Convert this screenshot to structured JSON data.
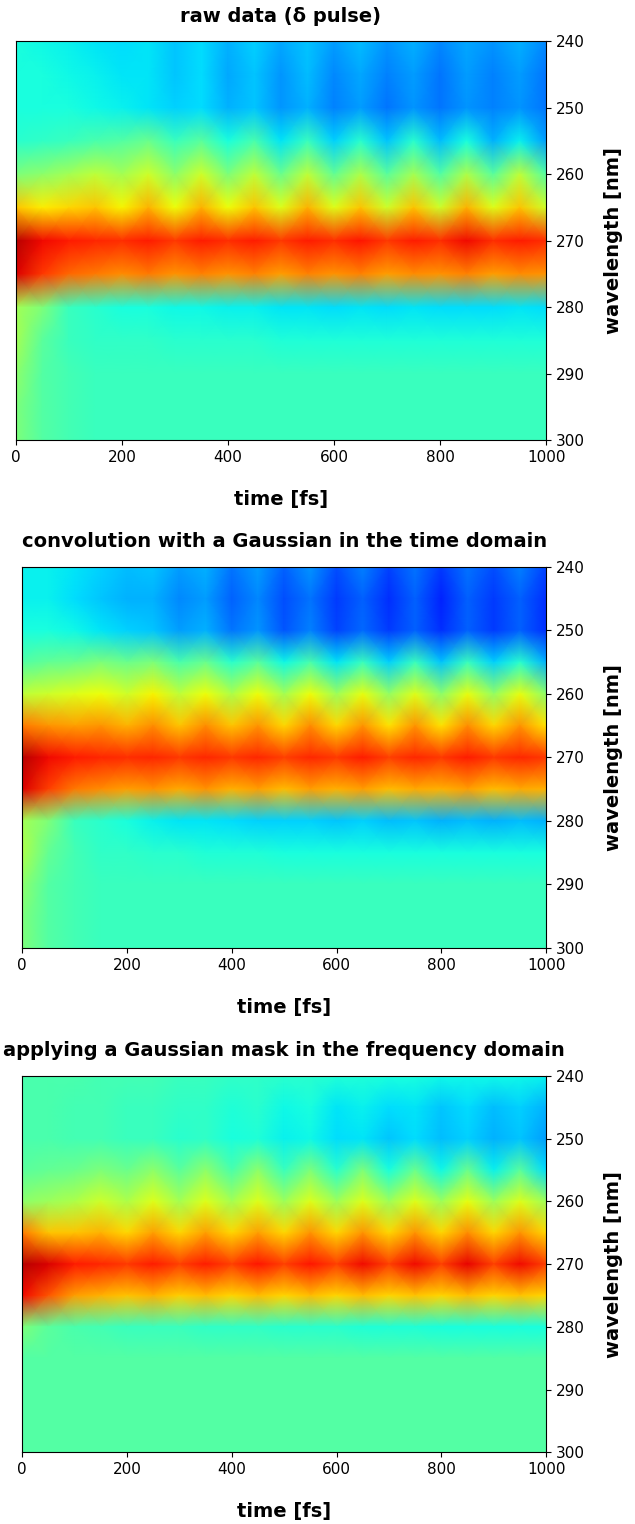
{
  "chart_data": [
    {
      "type": "heatmap",
      "title": "raw data (δ pulse)",
      "x_label": "time [fs]",
      "y_label": "wavelength [nm]",
      "xlim": [
        0,
        1000
      ],
      "ylim": [
        300,
        240
      ],
      "xticks": [
        0,
        200,
        400,
        600,
        800,
        1000
      ],
      "yticks": [
        240,
        250,
        260,
        270,
        280,
        290,
        300
      ],
      "color_range": [
        0,
        1
      ],
      "x": [
        0,
        50,
        100,
        150,
        200,
        250,
        300,
        350,
        400,
        450,
        500,
        550,
        600,
        650,
        700,
        750,
        800,
        850,
        900,
        950,
        1000
      ],
      "y": [
        240,
        245,
        250,
        255,
        260,
        265,
        270,
        275,
        280,
        285,
        290,
        295,
        300
      ],
      "cells": [
        [
          0.38,
          0.37,
          0.36,
          0.35,
          0.34,
          0.35,
          0.32,
          0.34,
          0.3,
          0.33,
          0.29,
          0.32,
          0.28,
          0.31,
          0.27,
          0.3,
          0.26,
          0.29,
          0.27,
          0.3,
          0.26
        ],
        [
          0.38,
          0.38,
          0.37,
          0.36,
          0.35,
          0.35,
          0.32,
          0.34,
          0.29,
          0.32,
          0.27,
          0.31,
          0.26,
          0.29,
          0.25,
          0.28,
          0.24,
          0.28,
          0.25,
          0.28,
          0.24
        ],
        [
          0.38,
          0.38,
          0.38,
          0.37,
          0.36,
          0.35,
          0.33,
          0.34,
          0.3,
          0.32,
          0.27,
          0.3,
          0.25,
          0.28,
          0.24,
          0.27,
          0.24,
          0.27,
          0.25,
          0.27,
          0.24
        ],
        [
          0.4,
          0.41,
          0.42,
          0.44,
          0.45,
          0.48,
          0.42,
          0.46,
          0.38,
          0.44,
          0.35,
          0.42,
          0.33,
          0.4,
          0.32,
          0.4,
          0.31,
          0.38,
          0.3,
          0.36,
          0.28
        ],
        [
          0.5,
          0.52,
          0.55,
          0.58,
          0.55,
          0.6,
          0.52,
          0.6,
          0.5,
          0.58,
          0.48,
          0.58,
          0.47,
          0.56,
          0.46,
          0.55,
          0.45,
          0.56,
          0.46,
          0.58,
          0.45
        ],
        [
          0.7,
          0.66,
          0.68,
          0.7,
          0.65,
          0.72,
          0.64,
          0.72,
          0.64,
          0.7,
          0.62,
          0.72,
          0.62,
          0.7,
          0.6,
          0.7,
          0.6,
          0.72,
          0.62,
          0.7,
          0.6
        ],
        [
          0.95,
          0.9,
          0.88,
          0.87,
          0.86,
          0.88,
          0.85,
          0.88,
          0.86,
          0.88,
          0.85,
          0.88,
          0.86,
          0.89,
          0.85,
          0.88,
          0.86,
          0.9,
          0.86,
          0.88,
          0.86
        ],
        [
          0.92,
          0.85,
          0.8,
          0.78,
          0.76,
          0.78,
          0.75,
          0.77,
          0.75,
          0.77,
          0.74,
          0.77,
          0.75,
          0.77,
          0.74,
          0.76,
          0.75,
          0.77,
          0.74,
          0.76,
          0.75
        ],
        [
          0.55,
          0.5,
          0.42,
          0.4,
          0.38,
          0.38,
          0.37,
          0.37,
          0.36,
          0.36,
          0.35,
          0.35,
          0.34,
          0.35,
          0.34,
          0.35,
          0.34,
          0.34,
          0.34,
          0.35,
          0.34
        ],
        [
          0.55,
          0.46,
          0.42,
          0.41,
          0.41,
          0.41,
          0.4,
          0.4,
          0.4,
          0.4,
          0.39,
          0.39,
          0.39,
          0.39,
          0.39,
          0.39,
          0.39,
          0.39,
          0.39,
          0.39,
          0.39
        ],
        [
          0.52,
          0.45,
          0.43,
          0.42,
          0.42,
          0.42,
          0.42,
          0.42,
          0.42,
          0.42,
          0.42,
          0.42,
          0.42,
          0.42,
          0.42,
          0.42,
          0.42,
          0.42,
          0.42,
          0.42,
          0.42
        ],
        [
          0.5,
          0.45,
          0.43,
          0.42,
          0.42,
          0.42,
          0.42,
          0.42,
          0.42,
          0.42,
          0.42,
          0.42,
          0.42,
          0.42,
          0.42,
          0.42,
          0.42,
          0.42,
          0.42,
          0.42,
          0.42
        ],
        [
          0.5,
          0.45,
          0.43,
          0.42,
          0.42,
          0.42,
          0.42,
          0.42,
          0.42,
          0.42,
          0.42,
          0.42,
          0.42,
          0.42,
          0.42,
          0.42,
          0.42,
          0.42,
          0.42,
          0.42,
          0.42
        ]
      ]
    },
    {
      "type": "heatmap",
      "title": "convolution with a Gaussian in the time domain",
      "x_label": "time [fs]",
      "y_label": "wavelength [nm]",
      "xlim": [
        0,
        1000
      ],
      "ylim": [
        300,
        240
      ],
      "xticks": [
        0,
        200,
        400,
        600,
        800,
        1000
      ],
      "yticks": [
        240,
        250,
        260,
        270,
        280,
        290,
        300
      ],
      "color_range": [
        0,
        1
      ],
      "x": [
        0,
        50,
        100,
        150,
        200,
        250,
        300,
        350,
        400,
        450,
        500,
        550,
        600,
        650,
        700,
        750,
        800,
        850,
        900,
        950,
        1000
      ],
      "y": [
        240,
        245,
        250,
        255,
        260,
        265,
        270,
        275,
        280,
        285,
        290,
        295,
        300
      ],
      "cells": [
        [
          0.36,
          0.36,
          0.35,
          0.33,
          0.31,
          0.32,
          0.28,
          0.3,
          0.24,
          0.28,
          0.22,
          0.27,
          0.2,
          0.25,
          0.19,
          0.24,
          0.18,
          0.24,
          0.2,
          0.25,
          0.19
        ],
        [
          0.36,
          0.36,
          0.34,
          0.32,
          0.3,
          0.3,
          0.26,
          0.28,
          0.22,
          0.26,
          0.2,
          0.24,
          0.18,
          0.22,
          0.17,
          0.22,
          0.16,
          0.22,
          0.18,
          0.22,
          0.17
        ],
        [
          0.38,
          0.38,
          0.37,
          0.35,
          0.33,
          0.32,
          0.28,
          0.3,
          0.24,
          0.27,
          0.21,
          0.25,
          0.19,
          0.23,
          0.18,
          0.22,
          0.17,
          0.22,
          0.18,
          0.22,
          0.17
        ],
        [
          0.45,
          0.47,
          0.48,
          0.5,
          0.48,
          0.5,
          0.44,
          0.48,
          0.4,
          0.46,
          0.37,
          0.44,
          0.35,
          0.42,
          0.33,
          0.42,
          0.32,
          0.42,
          0.33,
          0.4,
          0.3
        ],
        [
          0.58,
          0.6,
          0.62,
          0.64,
          0.6,
          0.65,
          0.58,
          0.64,
          0.56,
          0.64,
          0.55,
          0.64,
          0.54,
          0.63,
          0.53,
          0.62,
          0.52,
          0.63,
          0.53,
          0.63,
          0.52
        ],
        [
          0.78,
          0.75,
          0.74,
          0.75,
          0.72,
          0.76,
          0.7,
          0.76,
          0.7,
          0.75,
          0.68,
          0.76,
          0.68,
          0.75,
          0.67,
          0.75,
          0.67,
          0.76,
          0.68,
          0.75,
          0.67
        ],
        [
          0.95,
          0.9,
          0.88,
          0.87,
          0.86,
          0.87,
          0.85,
          0.87,
          0.85,
          0.87,
          0.84,
          0.87,
          0.85,
          0.88,
          0.84,
          0.87,
          0.85,
          0.88,
          0.85,
          0.87,
          0.85
        ],
        [
          0.92,
          0.84,
          0.78,
          0.76,
          0.74,
          0.75,
          0.73,
          0.75,
          0.72,
          0.74,
          0.71,
          0.74,
          0.72,
          0.74,
          0.71,
          0.73,
          0.72,
          0.74,
          0.71,
          0.73,
          0.72
        ],
        [
          0.55,
          0.5,
          0.42,
          0.4,
          0.38,
          0.36,
          0.35,
          0.35,
          0.34,
          0.33,
          0.33,
          0.33,
          0.32,
          0.33,
          0.31,
          0.32,
          0.3,
          0.31,
          0.3,
          0.31,
          0.3
        ],
        [
          0.56,
          0.47,
          0.43,
          0.41,
          0.41,
          0.4,
          0.4,
          0.39,
          0.39,
          0.39,
          0.38,
          0.38,
          0.38,
          0.38,
          0.38,
          0.38,
          0.38,
          0.38,
          0.38,
          0.38,
          0.38
        ],
        [
          0.52,
          0.45,
          0.43,
          0.42,
          0.42,
          0.42,
          0.42,
          0.42,
          0.42,
          0.42,
          0.42,
          0.42,
          0.42,
          0.42,
          0.42,
          0.42,
          0.42,
          0.42,
          0.42,
          0.42,
          0.42
        ],
        [
          0.5,
          0.45,
          0.43,
          0.42,
          0.42,
          0.42,
          0.42,
          0.42,
          0.42,
          0.42,
          0.42,
          0.42,
          0.42,
          0.42,
          0.42,
          0.42,
          0.42,
          0.42,
          0.42,
          0.42,
          0.42
        ],
        [
          0.5,
          0.45,
          0.43,
          0.42,
          0.42,
          0.42,
          0.42,
          0.42,
          0.42,
          0.42,
          0.42,
          0.42,
          0.42,
          0.42,
          0.42,
          0.42,
          0.42,
          0.42,
          0.42,
          0.42,
          0.42
        ]
      ]
    },
    {
      "type": "heatmap",
      "title": "applying a Gaussian mask in the frequency domain",
      "x_label": "time [fs]",
      "y_label": "wavelength [nm]",
      "xlim": [
        0,
        1000
      ],
      "ylim": [
        300,
        240
      ],
      "xticks": [
        0,
        200,
        400,
        600,
        800,
        1000
      ],
      "yticks": [
        240,
        250,
        260,
        270,
        280,
        290,
        300
      ],
      "color_range": [
        0,
        1
      ],
      "x": [
        0,
        50,
        100,
        150,
        200,
        250,
        300,
        350,
        400,
        450,
        500,
        550,
        600,
        650,
        700,
        750,
        800,
        850,
        900,
        950,
        1000
      ],
      "y": [
        240,
        245,
        250,
        255,
        260,
        265,
        270,
        275,
        280,
        285,
        290,
        295,
        300
      ],
      "cells": [
        [
          0.44,
          0.44,
          0.44,
          0.43,
          0.43,
          0.43,
          0.42,
          0.42,
          0.41,
          0.41,
          0.4,
          0.4,
          0.39,
          0.39,
          0.38,
          0.38,
          0.37,
          0.37,
          0.37,
          0.37,
          0.36
        ],
        [
          0.44,
          0.44,
          0.43,
          0.43,
          0.42,
          0.42,
          0.41,
          0.41,
          0.39,
          0.4,
          0.37,
          0.38,
          0.35,
          0.36,
          0.34,
          0.35,
          0.32,
          0.34,
          0.31,
          0.33,
          0.3
        ],
        [
          0.44,
          0.44,
          0.43,
          0.43,
          0.42,
          0.42,
          0.4,
          0.41,
          0.38,
          0.39,
          0.36,
          0.37,
          0.34,
          0.35,
          0.32,
          0.34,
          0.31,
          0.33,
          0.3,
          0.32,
          0.28
        ],
        [
          0.46,
          0.47,
          0.48,
          0.5,
          0.48,
          0.52,
          0.46,
          0.52,
          0.44,
          0.52,
          0.42,
          0.5,
          0.4,
          0.5,
          0.38,
          0.48,
          0.37,
          0.48,
          0.36,
          0.46,
          0.34
        ],
        [
          0.52,
          0.54,
          0.56,
          0.6,
          0.56,
          0.62,
          0.55,
          0.62,
          0.55,
          0.62,
          0.54,
          0.62,
          0.54,
          0.62,
          0.54,
          0.62,
          0.54,
          0.63,
          0.54,
          0.62,
          0.54
        ],
        [
          0.78,
          0.7,
          0.7,
          0.72,
          0.68,
          0.74,
          0.68,
          0.74,
          0.68,
          0.74,
          0.68,
          0.75,
          0.68,
          0.75,
          0.68,
          0.75,
          0.68,
          0.76,
          0.68,
          0.75,
          0.68
        ],
        [
          0.95,
          0.92,
          0.88,
          0.87,
          0.85,
          0.88,
          0.84,
          0.88,
          0.84,
          0.89,
          0.84,
          0.89,
          0.84,
          0.9,
          0.84,
          0.9,
          0.84,
          0.91,
          0.84,
          0.9,
          0.84
        ],
        [
          0.9,
          0.82,
          0.74,
          0.72,
          0.7,
          0.72,
          0.69,
          0.71,
          0.68,
          0.71,
          0.68,
          0.71,
          0.68,
          0.71,
          0.68,
          0.7,
          0.68,
          0.71,
          0.68,
          0.7,
          0.68
        ],
        [
          0.5,
          0.46,
          0.44,
          0.43,
          0.42,
          0.42,
          0.42,
          0.41,
          0.41,
          0.41,
          0.4,
          0.4,
          0.4,
          0.39,
          0.39,
          0.39,
          0.38,
          0.38,
          0.38,
          0.38,
          0.38
        ],
        [
          0.45,
          0.45,
          0.45,
          0.45,
          0.45,
          0.45,
          0.45,
          0.45,
          0.45,
          0.45,
          0.45,
          0.45,
          0.45,
          0.45,
          0.45,
          0.45,
          0.45,
          0.45,
          0.45,
          0.45,
          0.45
        ],
        [
          0.45,
          0.45,
          0.45,
          0.45,
          0.45,
          0.45,
          0.45,
          0.45,
          0.45,
          0.45,
          0.45,
          0.45,
          0.45,
          0.45,
          0.45,
          0.45,
          0.45,
          0.45,
          0.45,
          0.45,
          0.45
        ],
        [
          0.45,
          0.45,
          0.45,
          0.45,
          0.45,
          0.45,
          0.45,
          0.45,
          0.45,
          0.45,
          0.45,
          0.45,
          0.45,
          0.45,
          0.45,
          0.45,
          0.45,
          0.45,
          0.45,
          0.45,
          0.45
        ],
        [
          0.45,
          0.45,
          0.45,
          0.45,
          0.45,
          0.45,
          0.45,
          0.45,
          0.45,
          0.45,
          0.45,
          0.45,
          0.45,
          0.45,
          0.45,
          0.45,
          0.45,
          0.45,
          0.45,
          0.45,
          0.45
        ]
      ]
    }
  ]
}
